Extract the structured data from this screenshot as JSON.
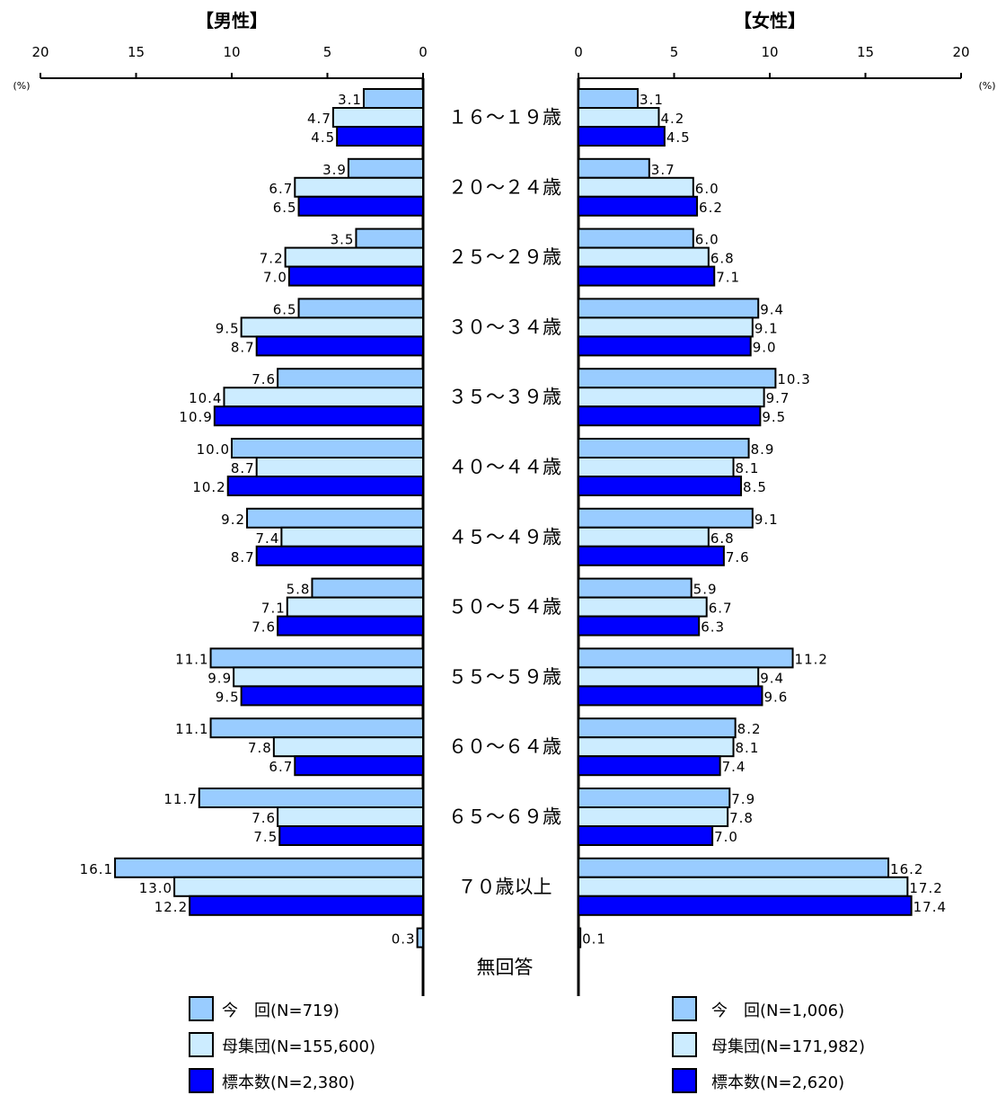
{
  "chart_data": {
    "type": "bar",
    "orientation": "horizontal-butterfly",
    "categories": [
      "１６～１９歳",
      "２０～２４歳",
      "２５～２９歳",
      "３０～３４歳",
      "３５～３９歳",
      "４０～４４歳",
      "４５～４９歳",
      "５０～５４歳",
      "５５～５９歳",
      "６０～６４歳",
      "６５～６９歳",
      "７０歳以上",
      "無回答"
    ],
    "xlim": [
      0,
      20
    ],
    "ticks": [
      "0",
      "5",
      "10",
      "15",
      "20"
    ],
    "unit_label": "(%)",
    "panels": [
      {
        "title": "【男性】",
        "direction": "left",
        "series": [
          {
            "name": "今　回(N=719)",
            "color": "#99ccff",
            "values": [
              3.1,
              3.9,
              3.5,
              6.5,
              7.6,
              10.0,
              9.2,
              5.8,
              11.1,
              11.1,
              11.7,
              16.1,
              0.3
            ],
            "labels": [
              "3.1",
              "3.9",
              "3.5",
              "6.5",
              "7.6",
              "10.0",
              "9.2",
              "5.8",
              "11.1",
              "11.1",
              "11.7",
              "16.1",
              "0.3"
            ]
          },
          {
            "name": "母集団(N=155,600)",
            "color": "#ccecff",
            "values": [
              4.7,
              6.7,
              7.2,
              9.5,
              10.4,
              8.7,
              7.4,
              7.1,
              9.9,
              7.8,
              7.6,
              13.0,
              null
            ],
            "labels": [
              "4.7",
              "6.7",
              "7.2",
              "9.5",
              "10.4",
              "8.7",
              "7.4",
              "7.1",
              "9.9",
              "7.8",
              "7.6",
              "13.0",
              ""
            ]
          },
          {
            "name": "標本数(N=2,380)",
            "color": "#0000ff",
            "values": [
              4.5,
              6.5,
              7.0,
              8.7,
              10.9,
              10.2,
              8.7,
              7.6,
              9.5,
              6.7,
              7.5,
              12.2,
              null
            ],
            "labels": [
              "4.5",
              "6.5",
              "7.0",
              "8.7",
              "10.9",
              "10.2",
              "8.7",
              "7.6",
              "9.5",
              "6.7",
              "7.5",
              "12.2",
              ""
            ]
          }
        ]
      },
      {
        "title": "【女性】",
        "direction": "right",
        "series": [
          {
            "name": "今　回(N=1,006)",
            "color": "#99ccff",
            "values": [
              3.1,
              3.7,
              6.0,
              9.4,
              10.3,
              8.9,
              9.1,
              5.9,
              11.2,
              8.2,
              7.9,
              16.2,
              0.1
            ],
            "labels": [
              "3.1",
              "3.7",
              "6.0",
              "9.4",
              "10.3",
              "8.9",
              "9.1",
              "5.9",
              "11.2",
              "8.2",
              "7.9",
              "16.2",
              "0.1"
            ]
          },
          {
            "name": "母集団(N=171,982)",
            "color": "#ccecff",
            "values": [
              4.2,
              6.0,
              6.8,
              9.1,
              9.7,
              8.1,
              6.8,
              6.7,
              9.4,
              8.1,
              7.8,
              17.2,
              null
            ],
            "labels": [
              "4.2",
              "6.0",
              "6.8",
              "9.1",
              "9.7",
              "8.1",
              "6.8",
              "6.7",
              "9.4",
              "8.1",
              "7.8",
              "17.2",
              ""
            ]
          },
          {
            "name": "標本数(N=2,620)",
            "color": "#0000ff",
            "values": [
              4.5,
              6.2,
              7.1,
              9.0,
              9.5,
              8.5,
              7.6,
              6.3,
              9.6,
              7.4,
              7.0,
              17.4,
              null
            ],
            "labels": [
              "4.5",
              "6.2",
              "7.1",
              "9.0",
              "9.5",
              "8.5",
              "7.6",
              "6.3",
              "9.6",
              "7.4",
              "7.0",
              "17.4",
              ""
            ]
          }
        ]
      }
    ]
  }
}
